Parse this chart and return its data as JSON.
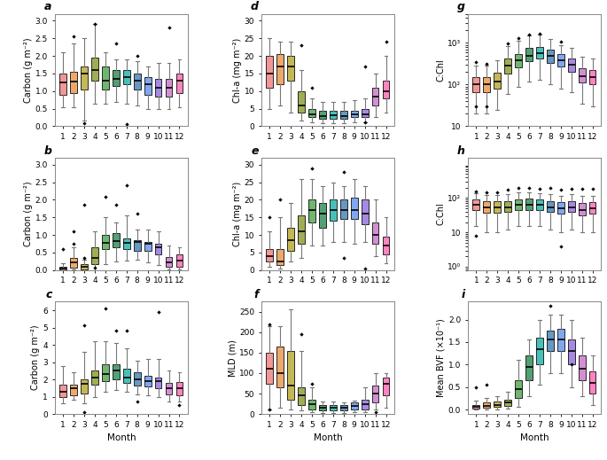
{
  "colors": [
    "#F08080",
    "#E8964B",
    "#B8A830",
    "#8B9B30",
    "#52A552",
    "#2E8B57",
    "#20B2AA",
    "#4682B4",
    "#6495ED",
    "#9370DB",
    "#C878C8",
    "#FF69B4"
  ],
  "panel_labels": [
    "a",
    "b",
    "c",
    "d",
    "e",
    "f",
    "g",
    "h",
    "i"
  ],
  "panel_a": {
    "ylabel": "Carbon (g m⁻²)",
    "ylim": [
      0,
      3.2
    ],
    "yticks": [
      0.0,
      0.5,
      1.0,
      1.5,
      2.0,
      2.5,
      3.0
    ],
    "data": {
      "medians": [
        1.25,
        1.28,
        1.5,
        1.6,
        1.3,
        1.35,
        1.4,
        1.3,
        1.2,
        1.1,
        1.1,
        1.3
      ],
      "q1": [
        0.9,
        0.95,
        1.05,
        1.3,
        1.05,
        1.15,
        1.2,
        1.05,
        0.9,
        0.85,
        0.85,
        0.95
      ],
      "q3": [
        1.5,
        1.55,
        1.7,
        1.95,
        1.7,
        1.6,
        1.6,
        1.5,
        1.4,
        1.35,
        1.35,
        1.5
      ],
      "whislo": [
        0.55,
        0.55,
        0.15,
        0.65,
        0.65,
        0.7,
        0.65,
        0.6,
        0.5,
        0.5,
        0.5,
        0.55
      ],
      "whishi": [
        2.1,
        2.35,
        2.5,
        2.9,
        2.1,
        1.9,
        1.9,
        1.85,
        1.7,
        1.8,
        1.8,
        1.9
      ],
      "fliers_hi": [
        null,
        2.55,
        null,
        2.9,
        null,
        2.35,
        null,
        2.0,
        null,
        null,
        2.8,
        null
      ],
      "fliers_lo": [
        null,
        null,
        0.08,
        null,
        null,
        null,
        0.05,
        null,
        null,
        null,
        null,
        null
      ]
    }
  },
  "panel_b": {
    "ylabel": "Carbon (g m⁻²)",
    "ylim": [
      0,
      3.2
    ],
    "yticks": [
      0.0,
      0.5,
      1.0,
      1.5,
      2.0,
      2.5,
      3.0
    ],
    "data": {
      "medians": [
        0.05,
        0.23,
        0.1,
        0.35,
        0.78,
        0.82,
        0.78,
        0.8,
        0.75,
        0.65,
        0.22,
        0.28
      ],
      "q1": [
        0.02,
        0.08,
        0.03,
        0.18,
        0.6,
        0.65,
        0.6,
        0.55,
        0.55,
        0.45,
        0.1,
        0.1
      ],
      "q3": [
        0.1,
        0.35,
        0.18,
        0.65,
        1.0,
        1.05,
        0.9,
        0.85,
        0.8,
        0.75,
        0.38,
        0.45
      ],
      "whislo": [
        0.01,
        0.01,
        0.005,
        0.005,
        0.18,
        0.25,
        0.28,
        0.3,
        0.22,
        0.15,
        0.01,
        0.03
      ],
      "whishi": [
        0.2,
        0.65,
        0.3,
        1.1,
        1.5,
        1.35,
        1.55,
        1.15,
        1.15,
        1.1,
        0.7,
        0.65
      ],
      "fliers_hi": [
        null,
        1.1,
        1.85,
        null,
        2.1,
        1.85,
        2.42,
        1.6,
        null,
        null,
        null,
        null
      ],
      "fliers_lo": [
        0.6,
        0.75,
        0.35,
        0.08,
        null,
        null,
        null,
        null,
        null,
        null,
        null,
        null
      ]
    }
  },
  "panel_c": {
    "ylabel": "Carbon (g m⁻²)",
    "ylim": [
      0,
      6.5
    ],
    "yticks": [
      0,
      1,
      2,
      3,
      4,
      5,
      6
    ],
    "data": {
      "medians": [
        1.3,
        1.5,
        1.75,
        2.1,
        2.3,
        2.5,
        2.1,
        2.0,
        1.9,
        1.9,
        1.5,
        1.5
      ],
      "q1": [
        1.0,
        1.1,
        1.2,
        1.7,
        1.9,
        2.0,
        1.8,
        1.65,
        1.6,
        1.5,
        1.15,
        1.1
      ],
      "q3": [
        1.7,
        1.7,
        2.0,
        2.5,
        2.9,
        2.9,
        2.6,
        2.4,
        2.2,
        2.1,
        1.8,
        1.85
      ],
      "whislo": [
        0.6,
        0.8,
        0.6,
        1.0,
        1.3,
        1.4,
        1.3,
        1.15,
        1.1,
        1.0,
        0.7,
        0.7
      ],
      "whishi": [
        2.75,
        2.4,
        3.6,
        4.2,
        4.2,
        4.1,
        3.8,
        3.1,
        3.2,
        3.2,
        2.5,
        2.4
      ],
      "fliers_hi": [
        null,
        null,
        5.15,
        null,
        6.1,
        4.8,
        4.8,
        null,
        null,
        5.9,
        null,
        null
      ],
      "fliers_lo": [
        null,
        null,
        0.1,
        null,
        null,
        null,
        null,
        0.7,
        null,
        null,
        null,
        0.5
      ]
    }
  },
  "panel_d": {
    "ylabel": "Chl-a (mg m⁻²)",
    "ylim": [
      0,
      32
    ],
    "yticks": [
      0,
      5,
      10,
      15,
      20,
      25,
      30
    ],
    "data": {
      "medians": [
        15.0,
        17.0,
        17.0,
        6.0,
        3.5,
        3.0,
        3.2,
        3.0,
        3.5,
        3.5,
        8.5,
        10.0
      ],
      "q1": [
        11.0,
        12.0,
        13.0,
        4.0,
        2.5,
        2.0,
        2.2,
        2.0,
        2.5,
        2.5,
        6.0,
        8.0
      ],
      "q3": [
        20.0,
        20.5,
        20.0,
        10.0,
        5.0,
        4.5,
        4.5,
        4.5,
        4.5,
        5.0,
        11.0,
        13.0
      ],
      "whislo": [
        5.0,
        6.0,
        4.0,
        1.5,
        1.0,
        0.8,
        0.8,
        0.8,
        1.0,
        1.0,
        2.5,
        4.0
      ],
      "whishi": [
        25.0,
        24.0,
        24.0,
        16.0,
        8.0,
        7.0,
        7.0,
        7.0,
        7.5,
        8.0,
        15.0,
        20.0
      ],
      "fliers_hi": [
        null,
        null,
        null,
        23.0,
        11.0,
        null,
        null,
        null,
        null,
        17.0,
        null,
        24.0
      ],
      "fliers_lo": [
        null,
        null,
        null,
        null,
        null,
        null,
        null,
        null,
        null,
        1.0,
        null,
        null
      ]
    }
  },
  "panel_e": {
    "ylabel": "Chl-a (mg m⁻²)",
    "ylim": [
      0,
      32
    ],
    "yticks": [
      0,
      5,
      10,
      15,
      20,
      25,
      30
    ],
    "data": {
      "medians": [
        4.0,
        2.5,
        8.5,
        11.0,
        17.0,
        16.0,
        17.0,
        17.0,
        17.0,
        16.0,
        10.0,
        7.0
      ],
      "q1": [
        2.5,
        1.5,
        5.5,
        7.5,
        13.5,
        12.0,
        14.0,
        14.5,
        14.5,
        13.0,
        7.5,
        4.5
      ],
      "q3": [
        6.0,
        6.0,
        12.0,
        15.5,
        20.0,
        19.0,
        20.0,
        20.0,
        20.5,
        20.0,
        13.5,
        9.5
      ],
      "whislo": [
        1.0,
        0.5,
        2.5,
        3.5,
        7.0,
        7.0,
        8.0,
        8.0,
        7.5,
        8.0,
        4.0,
        2.0
      ],
      "whishi": [
        11.0,
        15.0,
        19.0,
        26.0,
        26.0,
        24.0,
        25.0,
        24.0,
        26.0,
        24.0,
        20.0,
        15.0
      ],
      "fliers_hi": [
        15.0,
        20.0,
        null,
        null,
        29.0,
        null,
        null,
        28.0,
        null,
        null,
        null,
        null
      ],
      "fliers_lo": [
        null,
        null,
        null,
        null,
        null,
        null,
        null,
        3.5,
        null,
        0.5,
        null,
        null
      ]
    }
  },
  "panel_f": {
    "ylabel": "MLD (m)",
    "ylim": [
      0,
      275
    ],
    "yticks": [
      0,
      50,
      100,
      150,
      200,
      250
    ],
    "data": {
      "medians": [
        110.0,
        100.0,
        70.0,
        45.0,
        25.0,
        15.0,
        15.0,
        15.0,
        20.0,
        25.0,
        50.0,
        75.0
      ],
      "q1": [
        75.0,
        65.0,
        35.0,
        22.0,
        12.0,
        8.0,
        8.0,
        8.0,
        10.0,
        12.0,
        28.0,
        45.0
      ],
      "q3": [
        150.0,
        165.0,
        155.0,
        65.0,
        35.0,
        22.0,
        22.0,
        22.0,
        28.0,
        35.0,
        70.0,
        90.0
      ],
      "whislo": [
        10.0,
        15.0,
        10.0,
        8.0,
        5.0,
        3.0,
        3.0,
        3.0,
        5.0,
        5.0,
        12.0,
        15.0
      ],
      "whishi": [
        215.0,
        215.0,
        255.0,
        155.0,
        65.0,
        30.0,
        30.0,
        28.0,
        32.0,
        65.0,
        100.0,
        100.0
      ],
      "fliers_hi": [
        220.0,
        null,
        null,
        195.0,
        75.0,
        null,
        null,
        null,
        null,
        null,
        null,
        null
      ],
      "fliers_lo": [
        12.0,
        null,
        null,
        null,
        null,
        null,
        null,
        null,
        null,
        null,
        5.0,
        null
      ]
    }
  },
  "panel_g": {
    "ylabel": "C:Chl",
    "ylim_log": [
      10,
      5000
    ],
    "yticks_log": [
      10,
      100,
      1000
    ],
    "yticklabels_log": [
      "10",
      "10²",
      "10³"
    ],
    "data": {
      "medians": [
        100,
        100,
        120,
        280,
        380,
        500,
        580,
        480,
        380,
        300,
        160,
        150
      ],
      "q1": [
        65,
        65,
        80,
        180,
        260,
        360,
        420,
        330,
        270,
        200,
        110,
        100
      ],
      "q3": [
        150,
        150,
        190,
        420,
        550,
        750,
        800,
        680,
        530,
        420,
        250,
        220
      ],
      "whislo": [
        20,
        20,
        25,
        60,
        90,
        120,
        130,
        100,
        80,
        65,
        35,
        30
      ],
      "whishi": [
        280,
        280,
        390,
        850,
        1100,
        1500,
        1600,
        1250,
        900,
        750,
        460,
        420
      ],
      "fliers_hi": [
        350,
        320,
        null,
        950,
        1300,
        1600,
        1700,
        null,
        1050,
        null,
        null,
        null
      ],
      "fliers_lo": [
        30,
        30,
        null,
        null,
        null,
        null,
        null,
        null,
        null,
        null,
        null,
        null
      ]
    }
  },
  "panel_h": {
    "ylabel": "C:Chl",
    "ylim_log": [
      0.8,
      1500
    ],
    "yticks_log": [
      1,
      10,
      100
    ],
    "yticklabels_log": [
      "10⁰",
      "10",
      "10²"
    ],
    "data": {
      "medians": [
        65,
        55,
        55,
        55,
        65,
        65,
        65,
        55,
        50,
        55,
        45,
        50
      ],
      "q1": [
        45,
        38,
        38,
        40,
        45,
        45,
        45,
        40,
        35,
        40,
        32,
        35
      ],
      "q3": [
        90,
        80,
        80,
        80,
        90,
        95,
        90,
        80,
        75,
        80,
        70,
        75
      ],
      "whislo": [
        15,
        10,
        10,
        12,
        15,
        15,
        15,
        12,
        10,
        12,
        10,
        10
      ],
      "whishi": [
        135,
        120,
        120,
        130,
        145,
        150,
        140,
        130,
        115,
        130,
        115,
        115
      ],
      "fliers_hi": [
        160,
        145,
        145,
        175,
        195,
        200,
        190,
        195,
        175,
        185,
        185,
        185
      ],
      "fliers_lo": [
        8,
        null,
        null,
        null,
        null,
        null,
        null,
        null,
        4,
        null,
        null,
        null
      ]
    }
  },
  "panel_i": {
    "ylabel": "Mean BVF (×10⁻¹)",
    "ylim": [
      -0.1,
      2.4
    ],
    "yticks": [
      0.0,
      0.5,
      1.0,
      1.5,
      2.0
    ],
    "data": {
      "medians": [
        0.05,
        0.08,
        0.1,
        0.15,
        0.45,
        0.95,
        1.35,
        1.55,
        1.55,
        1.3,
        0.9,
        0.6
      ],
      "q1": [
        0.02,
        0.04,
        0.05,
        0.08,
        0.25,
        0.65,
        1.0,
        1.3,
        1.3,
        1.0,
        0.65,
        0.35
      ],
      "q3": [
        0.1,
        0.15,
        0.18,
        0.22,
        0.65,
        1.2,
        1.6,
        1.75,
        1.8,
        1.55,
        1.2,
        0.85
      ],
      "whislo": [
        0.01,
        0.01,
        0.01,
        0.02,
        0.05,
        0.3,
        0.55,
        0.8,
        0.8,
        0.5,
        0.3,
        0.1
      ],
      "whishi": [
        0.2,
        0.25,
        0.3,
        0.4,
        1.1,
        1.55,
        2.0,
        2.1,
        2.1,
        2.0,
        1.6,
        1.2
      ],
      "fliers_hi": [
        0.5,
        0.55,
        null,
        null,
        null,
        null,
        null,
        2.3,
        null,
        1.0,
        null,
        null
      ],
      "fliers_lo": [
        null,
        null,
        null,
        null,
        null,
        null,
        null,
        null,
        null,
        null,
        null,
        null
      ]
    }
  }
}
